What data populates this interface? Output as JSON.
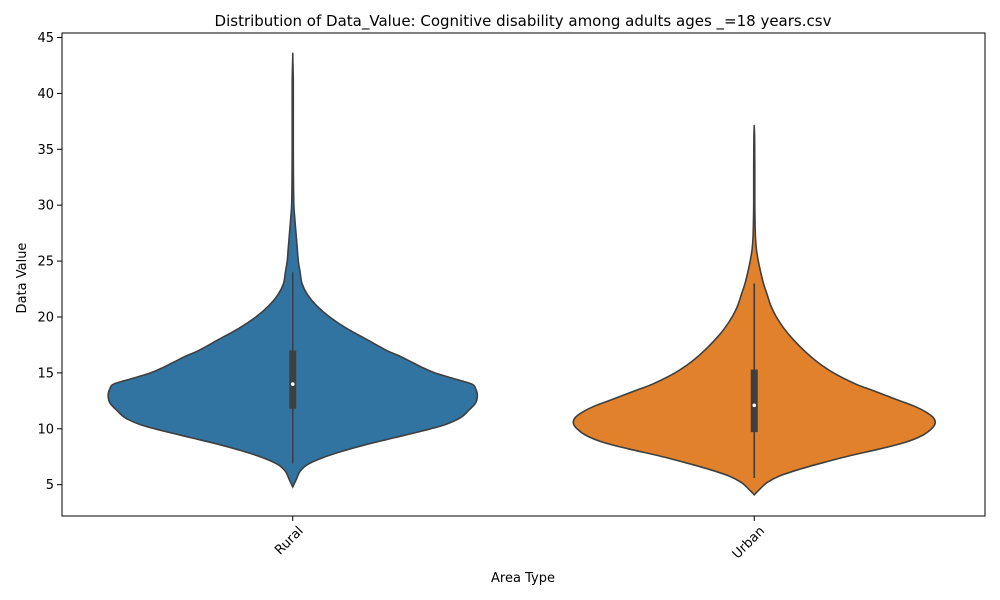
{
  "chart_data": {
    "type": "violin",
    "title": "Distribution of Data_Value: Cognitive disability among adults ages _=18 years.csv",
    "xlabel": "Area Type",
    "ylabel": "Data Value",
    "ylim": [
      2.2,
      45.4
    ],
    "yticks": [
      5,
      10,
      15,
      20,
      25,
      30,
      35,
      40,
      45
    ],
    "grid": false,
    "categories": [
      "Rural",
      "Urban"
    ],
    "series": [
      {
        "name": "Rural",
        "color": "#3274a1",
        "box": {
          "q1": 11.8,
          "median": 14.0,
          "q3": 17.0,
          "whisker_low": 6.9,
          "whisker_high": 24.0
        },
        "density": [
          [
            4.8,
            0.0
          ],
          [
            5.5,
            0.02
          ],
          [
            6.2,
            0.04
          ],
          [
            6.8,
            0.08
          ],
          [
            7.4,
            0.16
          ],
          [
            8.0,
            0.27
          ],
          [
            8.6,
            0.4
          ],
          [
            9.2,
            0.55
          ],
          [
            9.8,
            0.7
          ],
          [
            10.4,
            0.83
          ],
          [
            11.0,
            0.91
          ],
          [
            11.6,
            0.95
          ],
          [
            12.3,
            0.99
          ],
          [
            13.0,
            1.0
          ],
          [
            13.6,
            0.99
          ],
          [
            14.0,
            0.97
          ],
          [
            14.5,
            0.87
          ],
          [
            15.0,
            0.77
          ],
          [
            15.5,
            0.7
          ],
          [
            16.0,
            0.64
          ],
          [
            16.5,
            0.58
          ],
          [
            17.0,
            0.51
          ],
          [
            18.0,
            0.4
          ],
          [
            19.0,
            0.29
          ],
          [
            20.0,
            0.2
          ],
          [
            21.0,
            0.13
          ],
          [
            22.0,
            0.08
          ],
          [
            23.0,
            0.05
          ],
          [
            24.0,
            0.04
          ],
          [
            25.0,
            0.03
          ],
          [
            26.0,
            0.025
          ],
          [
            27.0,
            0.02
          ],
          [
            28.0,
            0.015
          ],
          [
            29.0,
            0.01
          ],
          [
            30.0,
            0.006
          ],
          [
            32.0,
            0.004
          ],
          [
            35.0,
            0.003
          ],
          [
            38.0,
            0.003
          ],
          [
            41.0,
            0.003
          ],
          [
            43.3,
            0.0
          ]
        ]
      },
      {
        "name": "Urban",
        "color": "#e1812c",
        "box": {
          "q1": 9.7,
          "median": 12.1,
          "q3": 15.3,
          "whisker_low": 5.6,
          "whisker_high": 23.0
        },
        "density": [
          [
            4.1,
            0.0
          ],
          [
            4.6,
            0.03
          ],
          [
            5.2,
            0.07
          ],
          [
            5.8,
            0.14
          ],
          [
            6.4,
            0.25
          ],
          [
            7.0,
            0.38
          ],
          [
            7.6,
            0.52
          ],
          [
            8.2,
            0.68
          ],
          [
            8.8,
            0.82
          ],
          [
            9.4,
            0.91
          ],
          [
            10.0,
            0.96
          ],
          [
            10.5,
            0.98
          ],
          [
            11.0,
            0.97
          ],
          [
            11.5,
            0.93
          ],
          [
            12.0,
            0.87
          ],
          [
            12.5,
            0.79
          ],
          [
            13.0,
            0.71
          ],
          [
            13.5,
            0.63
          ],
          [
            14.0,
            0.55
          ],
          [
            15.0,
            0.43
          ],
          [
            16.0,
            0.34
          ],
          [
            17.0,
            0.27
          ],
          [
            18.0,
            0.21
          ],
          [
            19.0,
            0.16
          ],
          [
            20.0,
            0.12
          ],
          [
            21.0,
            0.09
          ],
          [
            22.0,
            0.07
          ],
          [
            23.0,
            0.05
          ],
          [
            24.0,
            0.035
          ],
          [
            25.0,
            0.022
          ],
          [
            26.0,
            0.012
          ],
          [
            27.0,
            0.007
          ],
          [
            28.0,
            0.005
          ],
          [
            30.0,
            0.003
          ],
          [
            33.0,
            0.003
          ],
          [
            36.0,
            0.002
          ],
          [
            37.0,
            0.0
          ]
        ]
      }
    ]
  }
}
